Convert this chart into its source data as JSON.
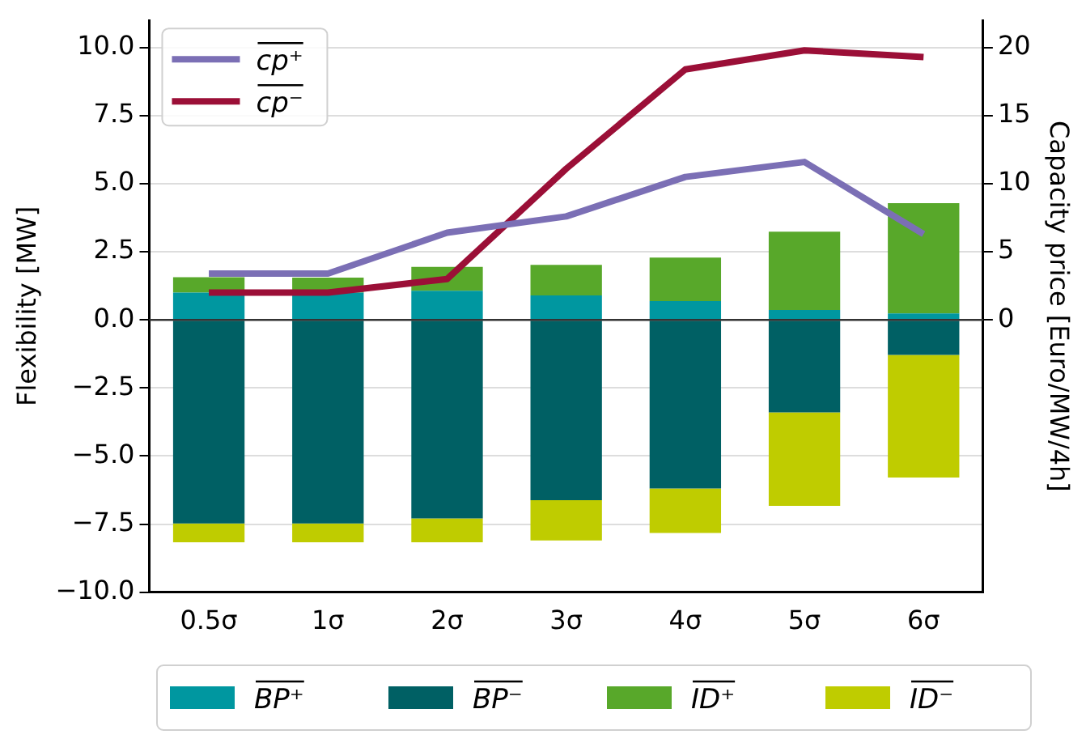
{
  "chart_data": {
    "type": "bar",
    "xlabel": null,
    "ylabel": "Flexibility [MW]",
    "y2label": "Capacity price [Euro/MW/4h]",
    "categories": [
      "0.5σ",
      "1σ",
      "2σ",
      "3σ",
      "4σ",
      "5σ",
      "6σ"
    ],
    "stacked": true,
    "series": [
      {
        "name": "BP⁺",
        "color": "#0097a0",
        "values": [
          1.0,
          1.0,
          1.07,
          0.9,
          0.69,
          0.36,
          0.24
        ]
      },
      {
        "name": "BP⁻",
        "color": "#006064",
        "values": [
          -7.48,
          -7.48,
          -7.29,
          -6.62,
          -6.19,
          -3.4,
          -1.29
        ]
      },
      {
        "name": "ID⁺",
        "color": "#58a82a",
        "values": [
          0.57,
          0.55,
          0.88,
          1.12,
          1.6,
          2.88,
          4.05
        ]
      },
      {
        "name": "ID⁻",
        "color": "#bfcc00",
        "values": [
          -0.69,
          -0.69,
          -0.88,
          -1.48,
          -1.64,
          -3.43,
          -4.5
        ]
      },
      {
        "name": "cp⁺",
        "color": "#7b6fb5",
        "type": "line",
        "axis": "y2",
        "values": [
          3.4,
          3.4,
          6.4,
          7.6,
          10.5,
          11.6,
          6.3
        ]
      },
      {
        "name": "cp⁻",
        "color": "#9b0f37",
        "type": "line",
        "axis": "y2",
        "values": [
          2.0,
          2.0,
          3.0,
          11.1,
          18.4,
          19.8,
          19.3
        ]
      }
    ],
    "ylim": [
      -10,
      11
    ],
    "yticks": [
      {
        "value": -10,
        "label": "−10.0"
      },
      {
        "value": -7.5,
        "label": "−7.5"
      },
      {
        "value": -5,
        "label": "−5.0"
      },
      {
        "value": -2.5,
        "label": "−2.5"
      },
      {
        "value": 0,
        "label": "0.0"
      },
      {
        "value": 2.5,
        "label": "2.5"
      },
      {
        "value": 5,
        "label": "5.0"
      },
      {
        "value": 7.5,
        "label": "7.5"
      },
      {
        "value": 10,
        "label": "10.0"
      }
    ],
    "y2lim": [
      -20,
      22
    ],
    "y2ticks": [
      0,
      5,
      10,
      15,
      20
    ],
    "ref_lines": [
      {
        "axis": "y",
        "value": 0,
        "color": "#333333"
      }
    ],
    "grid": "y",
    "legend": "bottom",
    "marker": "none"
  }
}
